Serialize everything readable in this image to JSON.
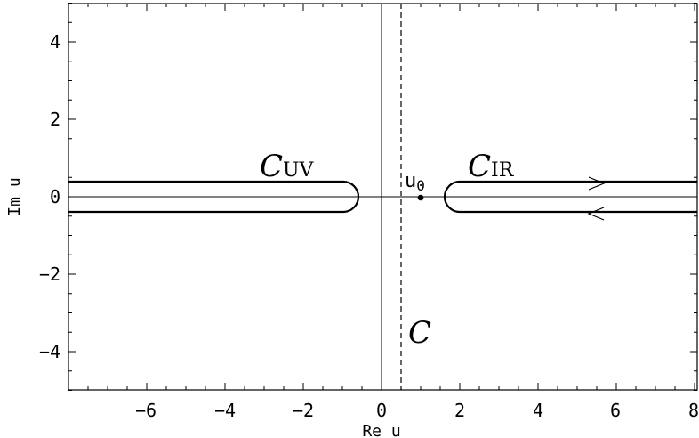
{
  "figure": {
    "x_axis": {
      "title": "Re u",
      "range": [
        -8,
        8
      ],
      "tick_values": [
        -6,
        -4,
        -2,
        0,
        2,
        4,
        6,
        8
      ]
    },
    "y_axis": {
      "title": "Im u",
      "range": [
        -5,
        5
      ],
      "tick_values": [
        -4,
        -2,
        0,
        2,
        4
      ]
    },
    "labels": {
      "c_uv": {
        "main": "C",
        "sub": "UV"
      },
      "c_ir": {
        "main": "C",
        "sub": "IR"
      },
      "u0": {
        "main": "u",
        "sub": "0"
      },
      "c": "C"
    },
    "point_u0": {
      "x": 1,
      "y": 0
    },
    "dashed_contour_x": 0.5
  }
}
